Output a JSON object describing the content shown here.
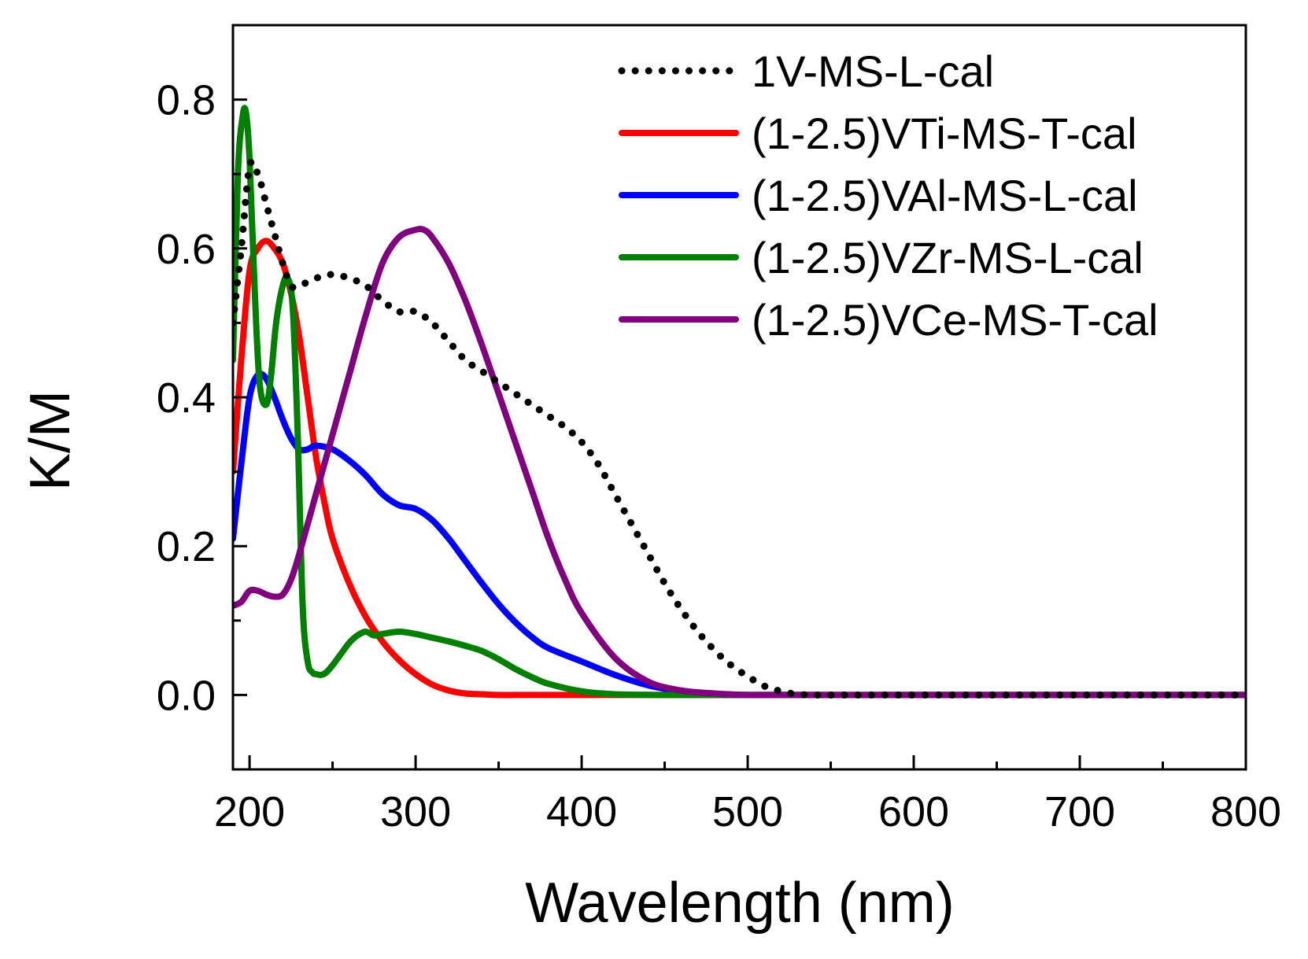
{
  "chart_data": {
    "type": "line",
    "title": "",
    "xlabel": "Wavelength (nm)",
    "ylabel": "K/M",
    "xlim": [
      190,
      800
    ],
    "ylim": [
      -0.1,
      0.9
    ],
    "xticks": [
      200,
      300,
      400,
      500,
      600,
      700,
      800
    ],
    "xtick_labels": [
      "200",
      "300",
      "400",
      "500",
      "600",
      "700",
      "800"
    ],
    "yticks": [
      0.0,
      0.2,
      0.4,
      0.6,
      0.8
    ],
    "ytick_labels": [
      "0.0",
      "0.2",
      "0.4",
      "0.6",
      "0.8"
    ],
    "grid": false,
    "legend_position": "top-right",
    "series": [
      {
        "name": "1V-MS-L-cal",
        "color": "#000000",
        "dash": "dotted",
        "x": [
          190,
          195,
          200,
          205,
          210,
          215,
          220,
          225,
          230,
          240,
          250,
          260,
          270,
          280,
          290,
          300,
          310,
          320,
          330,
          340,
          350,
          360,
          370,
          380,
          390,
          400,
          410,
          420,
          430,
          440,
          450,
          460,
          470,
          480,
          490,
          500,
          510,
          520,
          530,
          540,
          560,
          600,
          700,
          800
        ],
        "y": [
          0.5,
          0.6,
          0.71,
          0.7,
          0.66,
          0.62,
          0.58,
          0.55,
          0.55,
          0.56,
          0.565,
          0.56,
          0.55,
          0.53,
          0.515,
          0.515,
          0.5,
          0.475,
          0.45,
          0.435,
          0.42,
          0.405,
          0.39,
          0.375,
          0.36,
          0.34,
          0.31,
          0.27,
          0.23,
          0.19,
          0.15,
          0.115,
          0.085,
          0.06,
          0.04,
          0.025,
          0.012,
          0.005,
          0.001,
          0.0,
          0.0,
          0.0,
          0.0,
          0.0
        ]
      },
      {
        "name": "(1-2.5)VTi-MS-T-cal",
        "color": "#ff0000",
        "dash": "solid",
        "x": [
          190,
          195,
          200,
          205,
          210,
          215,
          220,
          225,
          230,
          235,
          240,
          245,
          250,
          260,
          270,
          280,
          290,
          300,
          310,
          320,
          330,
          340,
          350,
          360,
          380,
          400,
          500,
          600,
          700,
          800
        ],
        "y": [
          0.3,
          0.45,
          0.57,
          0.6,
          0.61,
          0.6,
          0.58,
          0.54,
          0.48,
          0.4,
          0.32,
          0.26,
          0.21,
          0.15,
          0.105,
          0.072,
          0.047,
          0.028,
          0.014,
          0.006,
          0.002,
          0.001,
          0.0,
          0.0,
          0.0,
          0.0,
          0.0,
          0.0,
          0.0,
          0.0
        ]
      },
      {
        "name": "(1-2.5)VAl-MS-L-cal",
        "color": "#0000ff",
        "dash": "solid",
        "x": [
          190,
          195,
          200,
          205,
          210,
          215,
          220,
          225,
          230,
          235,
          240,
          250,
          260,
          270,
          280,
          290,
          300,
          310,
          320,
          330,
          340,
          350,
          360,
          370,
          380,
          400,
          420,
          440,
          460,
          480,
          500,
          600,
          700,
          800
        ],
        "y": [
          0.21,
          0.31,
          0.4,
          0.43,
          0.425,
          0.4,
          0.37,
          0.345,
          0.33,
          0.33,
          0.335,
          0.33,
          0.315,
          0.295,
          0.27,
          0.255,
          0.25,
          0.235,
          0.21,
          0.18,
          0.15,
          0.122,
          0.098,
          0.078,
          0.063,
          0.045,
          0.027,
          0.013,
          0.005,
          0.001,
          0.0,
          0.0,
          0.0,
          0.0
        ]
      },
      {
        "name": "(1-2.5)VZr-MS-L-cal",
        "color": "#008000",
        "dash": "solid",
        "x": [
          190,
          193,
          196,
          198,
          200,
          203,
          206,
          210,
          213,
          216,
          220,
          223,
          226,
          229,
          232,
          235,
          238,
          240,
          243,
          246,
          250,
          255,
          260,
          265,
          270,
          275,
          280,
          290,
          300,
          310,
          320,
          330,
          340,
          350,
          360,
          370,
          380,
          400,
          420,
          450,
          500,
          600,
          700,
          800
        ],
        "y": [
          0.45,
          0.7,
          0.78,
          0.78,
          0.72,
          0.55,
          0.42,
          0.39,
          0.43,
          0.5,
          0.55,
          0.56,
          0.52,
          0.35,
          0.12,
          0.045,
          0.03,
          0.028,
          0.027,
          0.03,
          0.04,
          0.055,
          0.07,
          0.08,
          0.085,
          0.08,
          0.082,
          0.085,
          0.082,
          0.077,
          0.072,
          0.066,
          0.059,
          0.048,
          0.035,
          0.024,
          0.015,
          0.005,
          0.001,
          0.0,
          0.0,
          0.0,
          0.0,
          0.0
        ]
      },
      {
        "name": "(1-2.5)VCe-MS-T-cal",
        "color": "#800080",
        "dash": "solid",
        "x": [
          190,
          195,
          200,
          205,
          210,
          215,
          220,
          225,
          230,
          240,
          250,
          260,
          270,
          280,
          290,
          300,
          305,
          310,
          320,
          330,
          340,
          350,
          360,
          370,
          380,
          390,
          400,
          420,
          440,
          460,
          480,
          500,
          520,
          600,
          700,
          800
        ],
        "y": [
          0.12,
          0.125,
          0.14,
          0.14,
          0.135,
          0.132,
          0.135,
          0.155,
          0.19,
          0.27,
          0.35,
          0.43,
          0.51,
          0.58,
          0.615,
          0.625,
          0.625,
          0.615,
          0.58,
          0.53,
          0.47,
          0.405,
          0.34,
          0.275,
          0.21,
          0.155,
          0.11,
          0.05,
          0.018,
          0.006,
          0.002,
          0.0,
          0.0,
          0.0,
          0.0,
          0.0
        ]
      }
    ]
  }
}
